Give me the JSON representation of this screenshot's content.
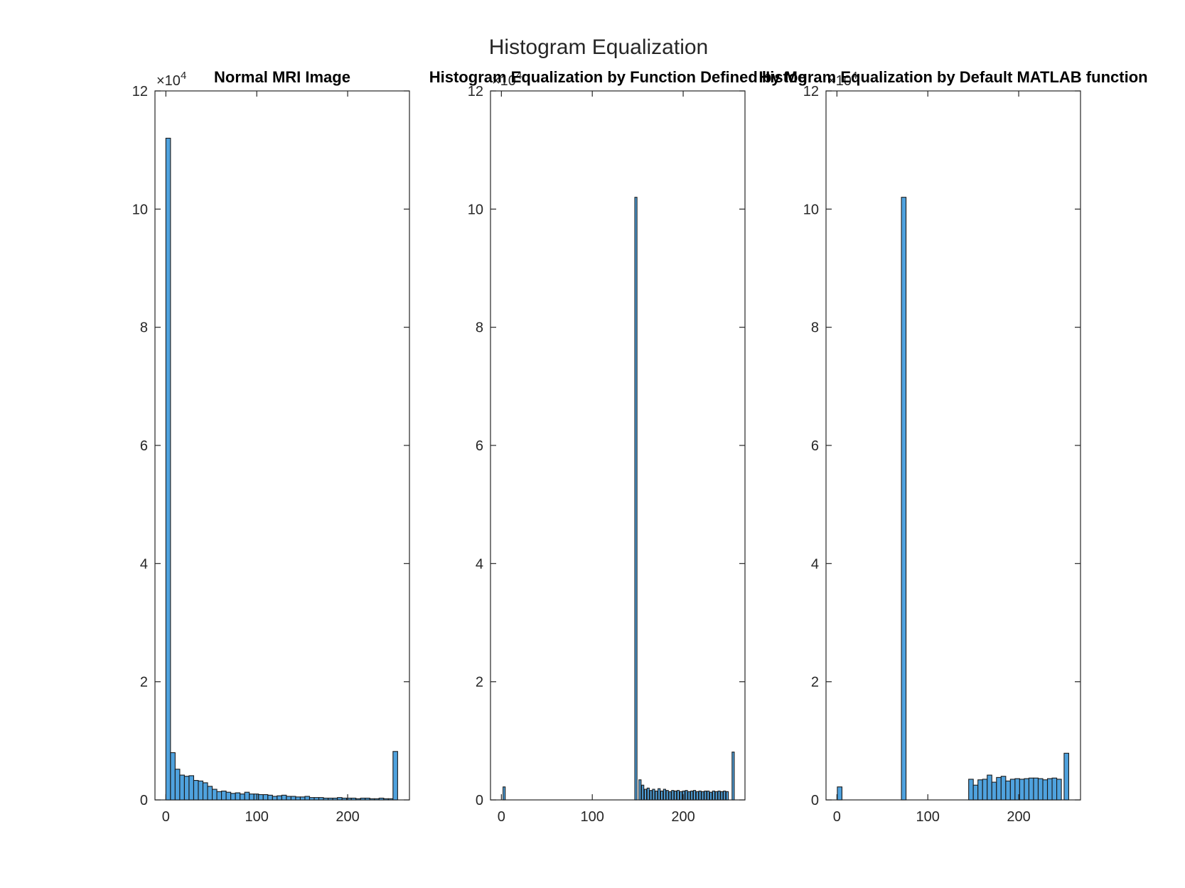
{
  "figure": {
    "title": "Histogram Equalization",
    "bar_color": "#4fa2de",
    "edge_color": "#1a1a1a"
  },
  "chart_data": [
    {
      "type": "bar",
      "title": "Normal MRI Image",
      "xlabel": "",
      "ylabel": "",
      "xlim": [
        -12,
        268
      ],
      "ylim": [
        0,
        120000
      ],
      "xticks": [
        0,
        100,
        200
      ],
      "yticks": [
        0,
        20000,
        40000,
        60000,
        80000,
        100000,
        120000
      ],
      "ytick_labels": [
        "0",
        "2",
        "4",
        "6",
        "8",
        "10",
        "12"
      ],
      "y_exponent": "×10^4",
      "grid": false,
      "bin_width": 5.1,
      "bins": [
        {
          "x": 2.55,
          "y": 112000
        },
        {
          "x": 7.65,
          "y": 8000
        },
        {
          "x": 12.75,
          "y": 5200
        },
        {
          "x": 17.85,
          "y": 4200
        },
        {
          "x": 22.95,
          "y": 4000
        },
        {
          "x": 28.05,
          "y": 4100
        },
        {
          "x": 33.15,
          "y": 3300
        },
        {
          "x": 38.25,
          "y": 3200
        },
        {
          "x": 43.35,
          "y": 2900
        },
        {
          "x": 48.45,
          "y": 2300
        },
        {
          "x": 53.55,
          "y": 1800
        },
        {
          "x": 58.65,
          "y": 1400
        },
        {
          "x": 63.75,
          "y": 1500
        },
        {
          "x": 68.85,
          "y": 1300
        },
        {
          "x": 73.95,
          "y": 1100
        },
        {
          "x": 79.05,
          "y": 1200
        },
        {
          "x": 84.15,
          "y": 1000
        },
        {
          "x": 89.25,
          "y": 1300
        },
        {
          "x": 94.35,
          "y": 1000
        },
        {
          "x": 99.45,
          "y": 1000
        },
        {
          "x": 104.55,
          "y": 900
        },
        {
          "x": 109.65,
          "y": 900
        },
        {
          "x": 114.75,
          "y": 800
        },
        {
          "x": 119.85,
          "y": 600
        },
        {
          "x": 124.95,
          "y": 700
        },
        {
          "x": 130.05,
          "y": 800
        },
        {
          "x": 135.15,
          "y": 600
        },
        {
          "x": 140.25,
          "y": 600
        },
        {
          "x": 145.35,
          "y": 500
        },
        {
          "x": 150.45,
          "y": 500
        },
        {
          "x": 155.55,
          "y": 600
        },
        {
          "x": 160.65,
          "y": 400
        },
        {
          "x": 165.75,
          "y": 400
        },
        {
          "x": 170.85,
          "y": 400
        },
        {
          "x": 175.95,
          "y": 300
        },
        {
          "x": 181.05,
          "y": 300
        },
        {
          "x": 186.15,
          "y": 300
        },
        {
          "x": 191.25,
          "y": 400
        },
        {
          "x": 196.35,
          "y": 300
        },
        {
          "x": 201.45,
          "y": 300
        },
        {
          "x": 206.55,
          "y": 300
        },
        {
          "x": 211.65,
          "y": 200
        },
        {
          "x": 216.75,
          "y": 300
        },
        {
          "x": 221.85,
          "y": 300
        },
        {
          "x": 226.95,
          "y": 200
        },
        {
          "x": 232.05,
          "y": 200
        },
        {
          "x": 237.15,
          "y": 300
        },
        {
          "x": 242.25,
          "y": 200
        },
        {
          "x": 247.35,
          "y": 200
        },
        {
          "x": 252.45,
          "y": 8200
        }
      ]
    },
    {
      "type": "bar",
      "title": "Histogram Equalization by Function Defined by Me",
      "xlabel": "",
      "ylabel": "",
      "xlim": [
        -12,
        268
      ],
      "ylim": [
        0,
        120000
      ],
      "xticks": [
        0,
        100,
        200
      ],
      "yticks": [
        0,
        20000,
        40000,
        60000,
        80000,
        100000,
        120000
      ],
      "ytick_labels": [
        "0",
        "2",
        "4",
        "6",
        "8",
        "10",
        "12"
      ],
      "y_exponent": "×10^4",
      "grid": false,
      "bin_width": 2.4,
      "bins": [
        {
          "x": 3,
          "y": 2200
        },
        {
          "x": 148,
          "y": 102000
        },
        {
          "x": 152.5,
          "y": 3400
        },
        {
          "x": 155.5,
          "y": 2500
        },
        {
          "x": 158.5,
          "y": 1800
        },
        {
          "x": 161.5,
          "y": 2000
        },
        {
          "x": 164.5,
          "y": 1600
        },
        {
          "x": 167.5,
          "y": 1800
        },
        {
          "x": 170.5,
          "y": 1500
        },
        {
          "x": 173.5,
          "y": 1900
        },
        {
          "x": 176.5,
          "y": 1500
        },
        {
          "x": 179.5,
          "y": 1800
        },
        {
          "x": 182.5,
          "y": 1600
        },
        {
          "x": 185.5,
          "y": 1400
        },
        {
          "x": 188.5,
          "y": 1600
        },
        {
          "x": 191.5,
          "y": 1500
        },
        {
          "x": 194.5,
          "y": 1600
        },
        {
          "x": 197.5,
          "y": 1400
        },
        {
          "x": 200.5,
          "y": 1500
        },
        {
          "x": 203.5,
          "y": 1600
        },
        {
          "x": 206.5,
          "y": 1400
        },
        {
          "x": 209.5,
          "y": 1500
        },
        {
          "x": 212.5,
          "y": 1600
        },
        {
          "x": 215.5,
          "y": 1400
        },
        {
          "x": 218.5,
          "y": 1500
        },
        {
          "x": 221.5,
          "y": 1400
        },
        {
          "x": 224.5,
          "y": 1500
        },
        {
          "x": 227.5,
          "y": 1500
        },
        {
          "x": 230.5,
          "y": 1300
        },
        {
          "x": 233.5,
          "y": 1500
        },
        {
          "x": 236.5,
          "y": 1400
        },
        {
          "x": 239.5,
          "y": 1500
        },
        {
          "x": 242.5,
          "y": 1400
        },
        {
          "x": 245.5,
          "y": 1500
        },
        {
          "x": 248.5,
          "y": 1400
        },
        {
          "x": 255,
          "y": 8100
        }
      ]
    },
    {
      "type": "bar",
      "title": "Histogram Equalization by Default MATLAB function",
      "xlabel": "",
      "ylabel": "",
      "xlim": [
        -12,
        268
      ],
      "ylim": [
        0,
        120000
      ],
      "xticks": [
        0,
        100,
        200
      ],
      "yticks": [
        0,
        20000,
        40000,
        60000,
        80000,
        100000,
        120000
      ],
      "ytick_labels": [
        "0",
        "2",
        "4",
        "6",
        "8",
        "10",
        "12"
      ],
      "y_exponent": "×10^4",
      "grid": false,
      "bin_width": 5.1,
      "bins": [
        {
          "x": 3,
          "y": 2200
        },
        {
          "x": 73.5,
          "y": 102000
        },
        {
          "x": 147.5,
          "y": 3500
        },
        {
          "x": 152.6,
          "y": 2500
        },
        {
          "x": 157.7,
          "y": 3400
        },
        {
          "x": 162.8,
          "y": 3500
        },
        {
          "x": 167.9,
          "y": 4200
        },
        {
          "x": 173,
          "y": 3000
        },
        {
          "x": 178.1,
          "y": 3800
        },
        {
          "x": 183.2,
          "y": 4000
        },
        {
          "x": 188.3,
          "y": 3200
        },
        {
          "x": 193.4,
          "y": 3500
        },
        {
          "x": 198.5,
          "y": 3600
        },
        {
          "x": 203.6,
          "y": 3500
        },
        {
          "x": 208.7,
          "y": 3600
        },
        {
          "x": 213.8,
          "y": 3700
        },
        {
          "x": 218.9,
          "y": 3700
        },
        {
          "x": 224,
          "y": 3600
        },
        {
          "x": 229.1,
          "y": 3400
        },
        {
          "x": 234.2,
          "y": 3600
        },
        {
          "x": 239.3,
          "y": 3700
        },
        {
          "x": 244.4,
          "y": 3500
        },
        {
          "x": 252.5,
          "y": 7900
        }
      ]
    }
  ]
}
